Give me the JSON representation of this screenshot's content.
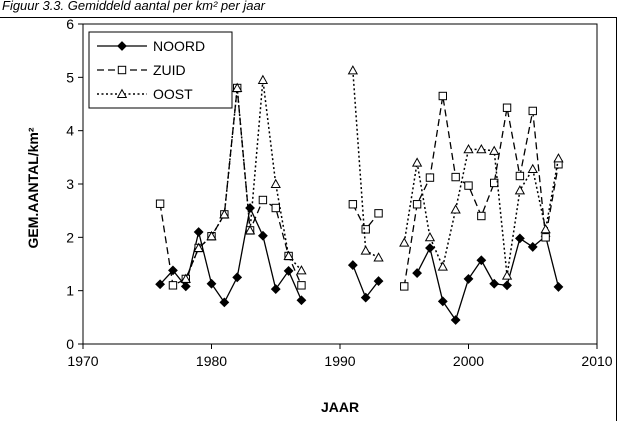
{
  "header": {
    "caption": "Figuur 3.3. Gemiddeld aantal per km² per jaar"
  },
  "chart_data": {
    "type": "line",
    "xlabel": "JAAR",
    "ylabel": "GEM.AANTAL/km²",
    "xlim": [
      1970,
      2010
    ],
    "ylim": [
      0,
      6
    ],
    "xticks": [
      1970,
      1980,
      1990,
      2000,
      2010
    ],
    "yticks": [
      0,
      1,
      2,
      3,
      4,
      5,
      6
    ],
    "grid": false,
    "legend_position": "top-left",
    "series": [
      {
        "name": "NOORD",
        "line": "solid",
        "marker": "diamond",
        "x": [
          1976,
          1977,
          1978,
          1979,
          1980,
          1981,
          1982,
          1983,
          1984,
          1985,
          1986,
          1987,
          null,
          1991,
          1992,
          1993,
          null,
          1996,
          1997,
          1998,
          1999,
          2000,
          2001,
          2002,
          2003,
          2004,
          2005,
          2006,
          2007
        ],
        "y": [
          1.12,
          1.38,
          1.08,
          2.1,
          1.13,
          0.78,
          1.25,
          2.55,
          2.03,
          1.03,
          1.37,
          0.82,
          null,
          1.48,
          0.87,
          1.18,
          null,
          1.33,
          1.8,
          0.8,
          0.45,
          1.22,
          1.57,
          1.13,
          1.1,
          1.98,
          1.82,
          2.02,
          1.07
        ]
      },
      {
        "name": "ZUID",
        "line": "dashed",
        "marker": "square",
        "x": [
          1976,
          1977,
          1978,
          1979,
          1980,
          1981,
          1982,
          1983,
          1984,
          1985,
          1986,
          1987,
          null,
          1991,
          1992,
          1993,
          null,
          1995,
          1996,
          1997,
          1998,
          1999,
          2000,
          2001,
          2002,
          2003,
          2004,
          2005,
          2006,
          2007
        ],
        "y": [
          2.63,
          1.1,
          1.22,
          1.8,
          2.02,
          2.43,
          4.8,
          2.13,
          2.7,
          2.55,
          1.65,
          1.1,
          null,
          2.62,
          2.15,
          2.45,
          null,
          1.08,
          2.62,
          3.12,
          4.65,
          3.13,
          2.97,
          2.4,
          3.02,
          4.43,
          3.15,
          4.37,
          2.0,
          3.37
        ]
      },
      {
        "name": "OOST",
        "line": "dotted",
        "marker": "triangle",
        "x": [
          1978,
          1979,
          1980,
          1981,
          1982,
          1983,
          1984,
          1985,
          1986,
          1987,
          null,
          1991,
          1992,
          1993,
          null,
          1995,
          1996,
          1997,
          1998,
          1999,
          2000,
          2001,
          2002,
          2003,
          2004,
          2005,
          2006,
          2007
        ],
        "y": [
          1.22,
          1.8,
          2.02,
          2.43,
          4.8,
          2.13,
          4.95,
          3.0,
          1.65,
          1.38,
          null,
          5.13,
          1.75,
          1.62,
          null,
          1.9,
          3.4,
          2.0,
          1.45,
          2.52,
          3.65,
          3.65,
          3.62,
          1.28,
          2.88,
          3.28,
          2.15,
          3.48
        ]
      }
    ]
  }
}
